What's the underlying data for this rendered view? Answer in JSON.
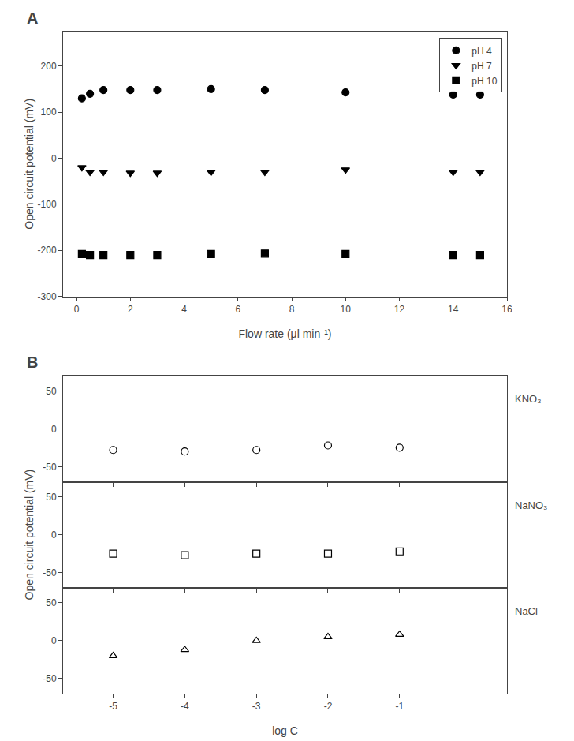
{
  "chart_data": [
    {
      "type": "scatter",
      "title": "A",
      "xlabel": "Flow rate (μl min⁻¹)",
      "ylabel": "Open circuit potential (mV)",
      "xlim": [
        -0.5,
        16
      ],
      "ylim": [
        -300,
        275
      ],
      "xticks": [
        0,
        2,
        4,
        6,
        8,
        10,
        12,
        14,
        16
      ],
      "yticks": [
        -300,
        -200,
        -100,
        0,
        100,
        200
      ],
      "grid": false,
      "legend": "upper right",
      "series": [
        {
          "name": "pH 4",
          "marker": "circle",
          "color": "#000000",
          "x": [
            0.2,
            0.5,
            1,
            2,
            3,
            5,
            7,
            10,
            14,
            15
          ],
          "values": [
            130,
            140,
            148,
            148,
            148,
            150,
            148,
            143,
            138,
            138
          ]
        },
        {
          "name": "pH 7",
          "marker": "triangle-down",
          "color": "#000000",
          "x": [
            0.2,
            0.5,
            1,
            2,
            3,
            5,
            7,
            10,
            14,
            15
          ],
          "values": [
            -20,
            -30,
            -30,
            -32,
            -32,
            -30,
            -30,
            -25,
            -30,
            -30
          ]
        },
        {
          "name": "pH 10",
          "marker": "square",
          "color": "#000000",
          "x": [
            0.2,
            0.5,
            1,
            2,
            3,
            5,
            7,
            10,
            14,
            15
          ],
          "values": [
            -208,
            -210,
            -210,
            -210,
            -210,
            -208,
            -207,
            -208,
            -210,
            -210
          ]
        }
      ]
    },
    {
      "type": "scatter",
      "title": "B",
      "xlim": [
        -5.7,
        0.5
      ],
      "ylim": [
        -70,
        70
      ],
      "xticks": [
        -5,
        -4,
        -3,
        -2,
        -1
      ],
      "yticks": [
        -50,
        0,
        50
      ],
      "grid": false,
      "tick_labels": "y",
      "x": [
        -5,
        -4,
        -3,
        -2,
        -1
      ],
      "series": [
        {
          "name": "KNO₃",
          "marker": "circle-open",
          "color": "#000000",
          "values": [
            -28,
            -30,
            -28,
            -22,
            -25
          ]
        }
      ]
    },
    {
      "type": "scatter",
      "ylabel": "Open circuit potential (mV)",
      "xlim": [
        -5.7,
        0.5
      ],
      "ylim": [
        -70,
        70
      ],
      "xticks": [
        -5,
        -4,
        -3,
        -2,
        -1
      ],
      "yticks": [
        -50,
        0,
        50
      ],
      "grid": false,
      "tick_labels": "y",
      "x": [
        -5,
        -4,
        -3,
        -2,
        -1
      ],
      "series": [
        {
          "name": "NaNO₃",
          "marker": "square-open",
          "color": "#000000",
          "values": [
            -25,
            -27,
            -25,
            -25,
            -22
          ]
        }
      ]
    },
    {
      "type": "scatter",
      "xlabel": "log C",
      "xlim": [
        -5.7,
        0.5
      ],
      "ylim": [
        -70,
        70
      ],
      "xticks": [
        -5,
        -4,
        -3,
        -2,
        -1
      ],
      "yticks": [
        -50,
        0,
        50
      ],
      "grid": false,
      "x": [
        -5,
        -4,
        -3,
        -2,
        -1
      ],
      "series": [
        {
          "name": "NaCl",
          "marker": "triangle-up-open",
          "color": "#000000",
          "values": [
            -20,
            -12,
            0,
            5,
            8
          ]
        }
      ]
    }
  ]
}
